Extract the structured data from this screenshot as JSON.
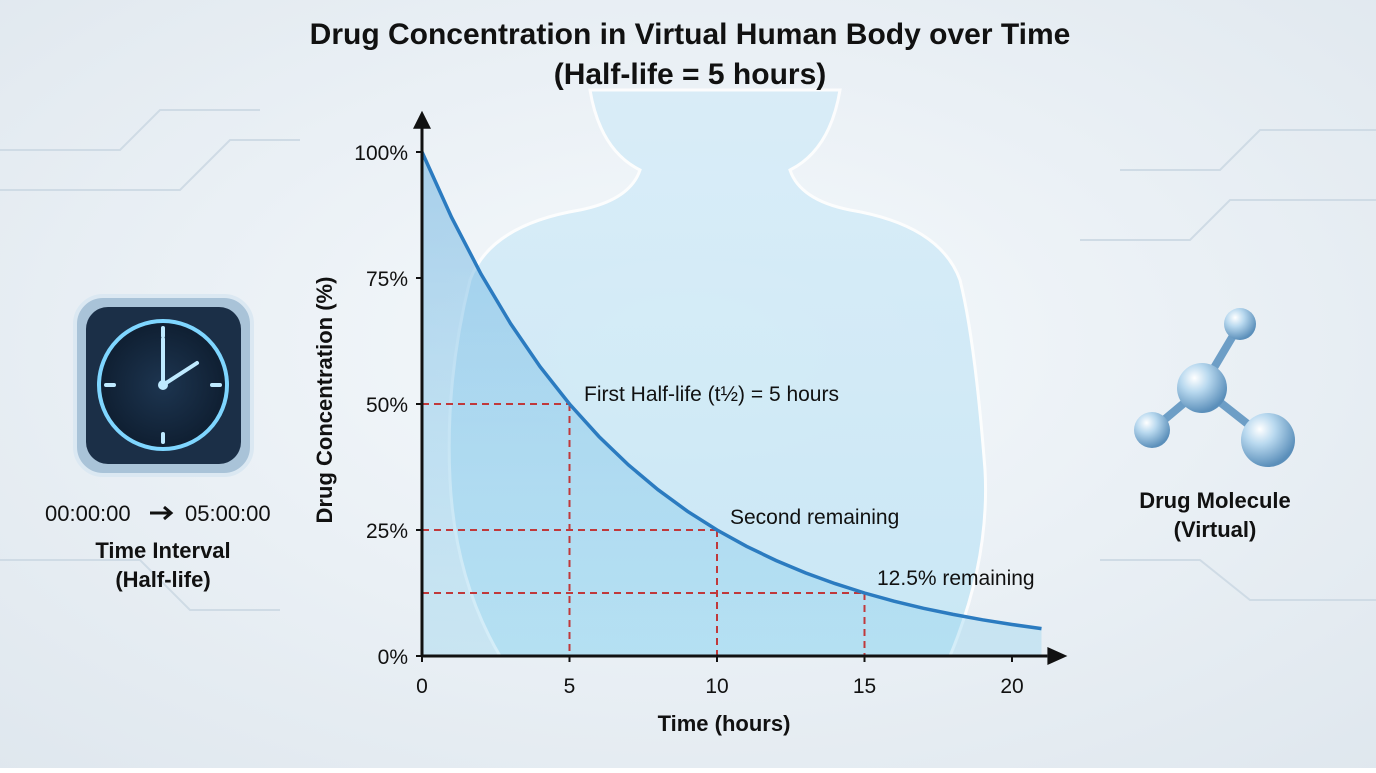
{
  "chart_data": {
    "type": "line",
    "title": [
      "Drug Concentration in Virtual Human Body over Time",
      "(Half-life = 5 hours)"
    ],
    "x_label": "Time (hours)",
    "y_label": "Drug Concentration (%)",
    "x": [
      0,
      1,
      2,
      3,
      4,
      5,
      6,
      7,
      8,
      9,
      10,
      11,
      12,
      13,
      14,
      15,
      16,
      17,
      18,
      19,
      20,
      21
    ],
    "series": [
      {
        "color": "#2b7bc0",
        "values": [
          100,
          87.06,
          75.79,
          65.98,
          57.43,
          50,
          43.53,
          37.89,
          32.99,
          28.72,
          25,
          21.76,
          18.95,
          16.49,
          14.36,
          12.5,
          10.88,
          9.47,
          8.25,
          7.18,
          6.25,
          5.44
        ]
      }
    ],
    "xlim": [
      0,
      21.2
    ],
    "ylim": [
      0,
      107
    ],
    "xticks": [
      0,
      5,
      10,
      15,
      20
    ],
    "yticks": [
      {
        "value": 0,
        "label": "0%"
      },
      {
        "value": 25,
        "label": "25%"
      },
      {
        "value": 50,
        "label": "50%"
      },
      {
        "value": 75,
        "label": "75%"
      },
      {
        "value": 100,
        "label": "100%"
      }
    ],
    "half_life_markers": [
      {
        "x": 5,
        "y": 50
      },
      {
        "x": 10,
        "y": 25
      },
      {
        "x": 15,
        "y": 12.5
      }
    ],
    "marker_color": "#c0393b",
    "annotations": [
      "First Half-life (t½) = 5 hours",
      "Second remaining",
      "12.5% remaining"
    ]
  },
  "clock_panel": {
    "start": "00:00:00",
    "end": "05:00:00",
    "caption": [
      "Time Interval",
      "(Half-life)"
    ]
  },
  "molecule_panel": {
    "caption": [
      "Drug Molecule",
      "(Virtual)"
    ]
  }
}
